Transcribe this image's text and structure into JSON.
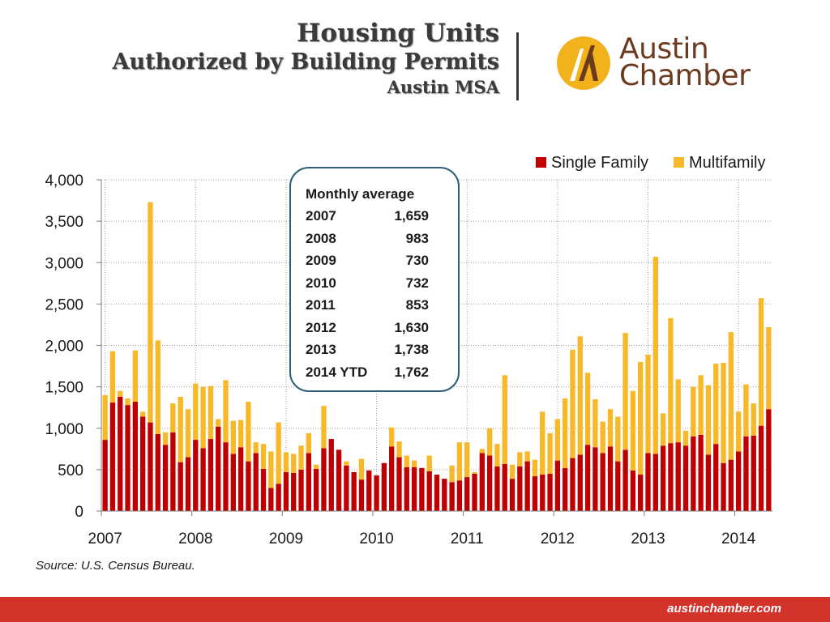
{
  "header": {
    "title_line1": "Housing Units",
    "title_line2": "Authorized by Building Permits",
    "title_line3": "Austin MSA"
  },
  "logo": {
    "icon": "austin-chamber-logo-icon",
    "line1": "Austin",
    "line2": "Chamber",
    "circle_color": "#f2b21c",
    "text_color": "#6b3a1f"
  },
  "callout": {
    "title": "Monthly average",
    "rows": [
      {
        "year": "2007",
        "value": "1,659"
      },
      {
        "year": "2008",
        "value": "983"
      },
      {
        "year": "2009",
        "value": "730"
      },
      {
        "year": "2010",
        "value": "732"
      },
      {
        "year": "2011",
        "value": "853"
      },
      {
        "year": "2012",
        "value": "1,630"
      },
      {
        "year": "2013",
        "value": "1,738"
      },
      {
        "year": "2014 YTD",
        "value": "1,762"
      }
    ]
  },
  "source": "Source: U.S. Census Bureau.",
  "footer": {
    "url": "austinchamber.com",
    "color": "#d2332a"
  },
  "chart_data": {
    "type": "bar",
    "stacked": true,
    "x_unit": "month",
    "x_tick_labels": [
      "2007",
      "2008",
      "2009",
      "2010",
      "2011",
      "2012",
      "2013",
      "2014"
    ],
    "ylim": [
      0,
      4000
    ],
    "y_ticks": [
      0,
      500,
      1000,
      1500,
      2000,
      2500,
      3000,
      3500,
      4000
    ],
    "y_tick_labels": [
      "0",
      "500",
      "1,000",
      "1,500",
      "2,000",
      "2,500",
      "3,000",
      "3,500",
      "4,000"
    ],
    "grid": {
      "horizontal": true,
      "vertical_at_year_starts": true
    },
    "legend_position": "top-right",
    "series": [
      {
        "name": "Single Family",
        "color": "#c00000",
        "values": [
          860,
          1310,
          1380,
          1280,
          1320,
          1140,
          1070,
          930,
          800,
          950,
          590,
          650,
          860,
          760,
          870,
          1020,
          830,
          690,
          770,
          600,
          700,
          510,
          280,
          330,
          470,
          460,
          500,
          700,
          510,
          760,
          870,
          740,
          550,
          470,
          380,
          490,
          430,
          580,
          780,
          650,
          530,
          530,
          520,
          480,
          440,
          390,
          350,
          370,
          410,
          450,
          700,
          670,
          540,
          570,
          390,
          540,
          600,
          420,
          440,
          450,
          610,
          520,
          640,
          680,
          800,
          770,
          700,
          780,
          600,
          740,
          490,
          440,
          700,
          690,
          790,
          820,
          830,
          790,
          900,
          920,
          680,
          810,
          580,
          620,
          720,
          900,
          910,
          1030,
          1230
        ]
      },
      {
        "name": "Multifamily",
        "color": "#f7b928",
        "values": [
          540,
          620,
          70,
          80,
          620,
          60,
          2660,
          1130,
          150,
          350,
          790,
          580,
          680,
          740,
          640,
          90,
          750,
          400,
          330,
          720,
          130,
          300,
          440,
          740,
          240,
          230,
          290,
          240,
          50,
          510,
          0,
          0,
          50,
          0,
          250,
          0,
          0,
          0,
          230,
          190,
          140,
          80,
          0,
          190,
          0,
          0,
          200,
          460,
          420,
          20,
          50,
          330,
          270,
          1070,
          170,
          170,
          120,
          200,
          760,
          490,
          500,
          840,
          1310,
          1430,
          870,
          580,
          380,
          450,
          540,
          1410,
          960,
          1360,
          1190,
          2380,
          390,
          1510,
          760,
          180,
          600,
          720,
          840,
          970,
          1210,
          1540,
          480,
          630,
          390,
          1540,
          990
        ]
      }
    ]
  }
}
